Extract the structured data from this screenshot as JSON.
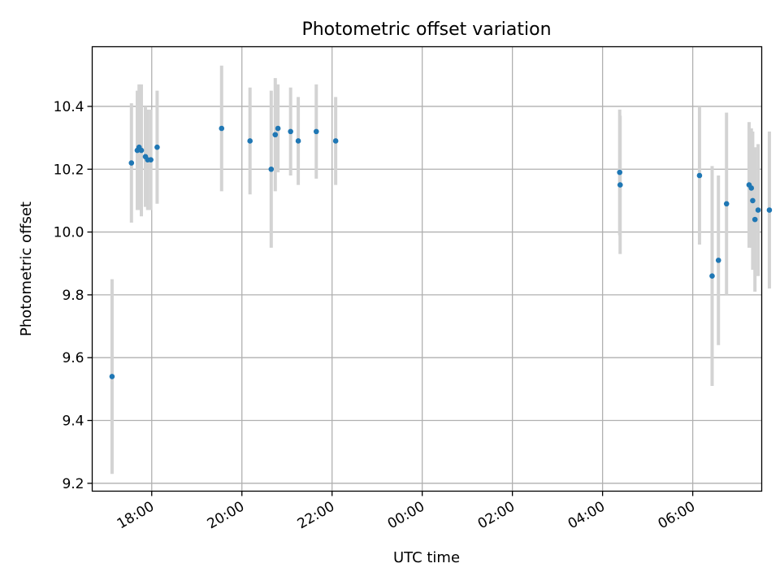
{
  "chart_data": {
    "type": "scatter",
    "title": "Photometric offset variation",
    "xlabel": "UTC time",
    "ylabel": "Photometric offset",
    "grid": true,
    "x_ticks": [
      {
        "value": 18.0,
        "label": "18:00"
      },
      {
        "value": 20.0,
        "label": "20:00"
      },
      {
        "value": 22.0,
        "label": "22:00"
      },
      {
        "value": 24.0,
        "label": "00:00"
      },
      {
        "value": 26.0,
        "label": "02:00"
      },
      {
        "value": 28.0,
        "label": "04:00"
      },
      {
        "value": 30.0,
        "label": "06:00"
      }
    ],
    "y_ticks": [
      {
        "value": 9.2,
        "label": "9.2"
      },
      {
        "value": 9.4,
        "label": "9.4"
      },
      {
        "value": 9.6,
        "label": "9.6"
      },
      {
        "value": 9.8,
        "label": "9.8"
      },
      {
        "value": 10.0,
        "label": "10.0"
      },
      {
        "value": 10.2,
        "label": "10.2"
      },
      {
        "value": 10.4,
        "label": "10.4"
      }
    ],
    "xlim": [
      16.68,
      31.53
    ],
    "ylim": [
      9.175,
      10.59
    ],
    "x_unit": "hours (UTC, continuing past midnight)",
    "colors": {
      "points": "#1f77b4",
      "errorbars": "#d3d3d3",
      "grid": "#b0b0b0"
    },
    "series": [
      {
        "points": [
          {
            "x": 17.12,
            "y": 9.54,
            "err": 0.31
          },
          {
            "x": 17.55,
            "y": 10.22,
            "err": 0.19
          },
          {
            "x": 17.68,
            "y": 10.26,
            "err": 0.19
          },
          {
            "x": 17.72,
            "y": 10.27,
            "err": 0.2
          },
          {
            "x": 17.77,
            "y": 10.26,
            "err": 0.21
          },
          {
            "x": 17.86,
            "y": 10.24,
            "err": 0.16
          },
          {
            "x": 17.91,
            "y": 10.23,
            "err": 0.16
          },
          {
            "x": 17.98,
            "y": 10.23,
            "err": 0.16
          },
          {
            "x": 18.12,
            "y": 10.27,
            "err": 0.18
          },
          {
            "x": 19.55,
            "y": 10.33,
            "err": 0.2
          },
          {
            "x": 20.18,
            "y": 10.29,
            "err": 0.17
          },
          {
            "x": 20.65,
            "y": 10.2,
            "err": 0.25
          },
          {
            "x": 20.74,
            "y": 10.31,
            "err": 0.18
          },
          {
            "x": 20.8,
            "y": 10.33,
            "err": 0.14
          },
          {
            "x": 21.08,
            "y": 10.32,
            "err": 0.14
          },
          {
            "x": 21.25,
            "y": 10.29,
            "err": 0.14
          },
          {
            "x": 21.65,
            "y": 10.32,
            "err": 0.15
          },
          {
            "x": 22.08,
            "y": 10.29,
            "err": 0.14
          },
          {
            "x": 28.38,
            "y": 10.19,
            "err": 0.2
          },
          {
            "x": 28.39,
            "y": 10.15,
            "err": 0.22
          },
          {
            "x": 30.15,
            "y": 10.18,
            "err": 0.22
          },
          {
            "x": 30.43,
            "y": 9.86,
            "err": 0.35
          },
          {
            "x": 30.57,
            "y": 9.91,
            "err": 0.27
          },
          {
            "x": 30.75,
            "y": 10.09,
            "err": 0.29
          },
          {
            "x": 31.25,
            "y": 10.15,
            "err": 0.2
          },
          {
            "x": 31.3,
            "y": 10.14,
            "err": 0.19
          },
          {
            "x": 31.33,
            "y": 10.1,
            "err": 0.22
          },
          {
            "x": 31.38,
            "y": 10.04,
            "err": 0.23
          },
          {
            "x": 31.45,
            "y": 10.07,
            "err": 0.21
          },
          {
            "x": 31.7,
            "y": 10.07,
            "err": 0.25
          }
        ]
      }
    ]
  }
}
